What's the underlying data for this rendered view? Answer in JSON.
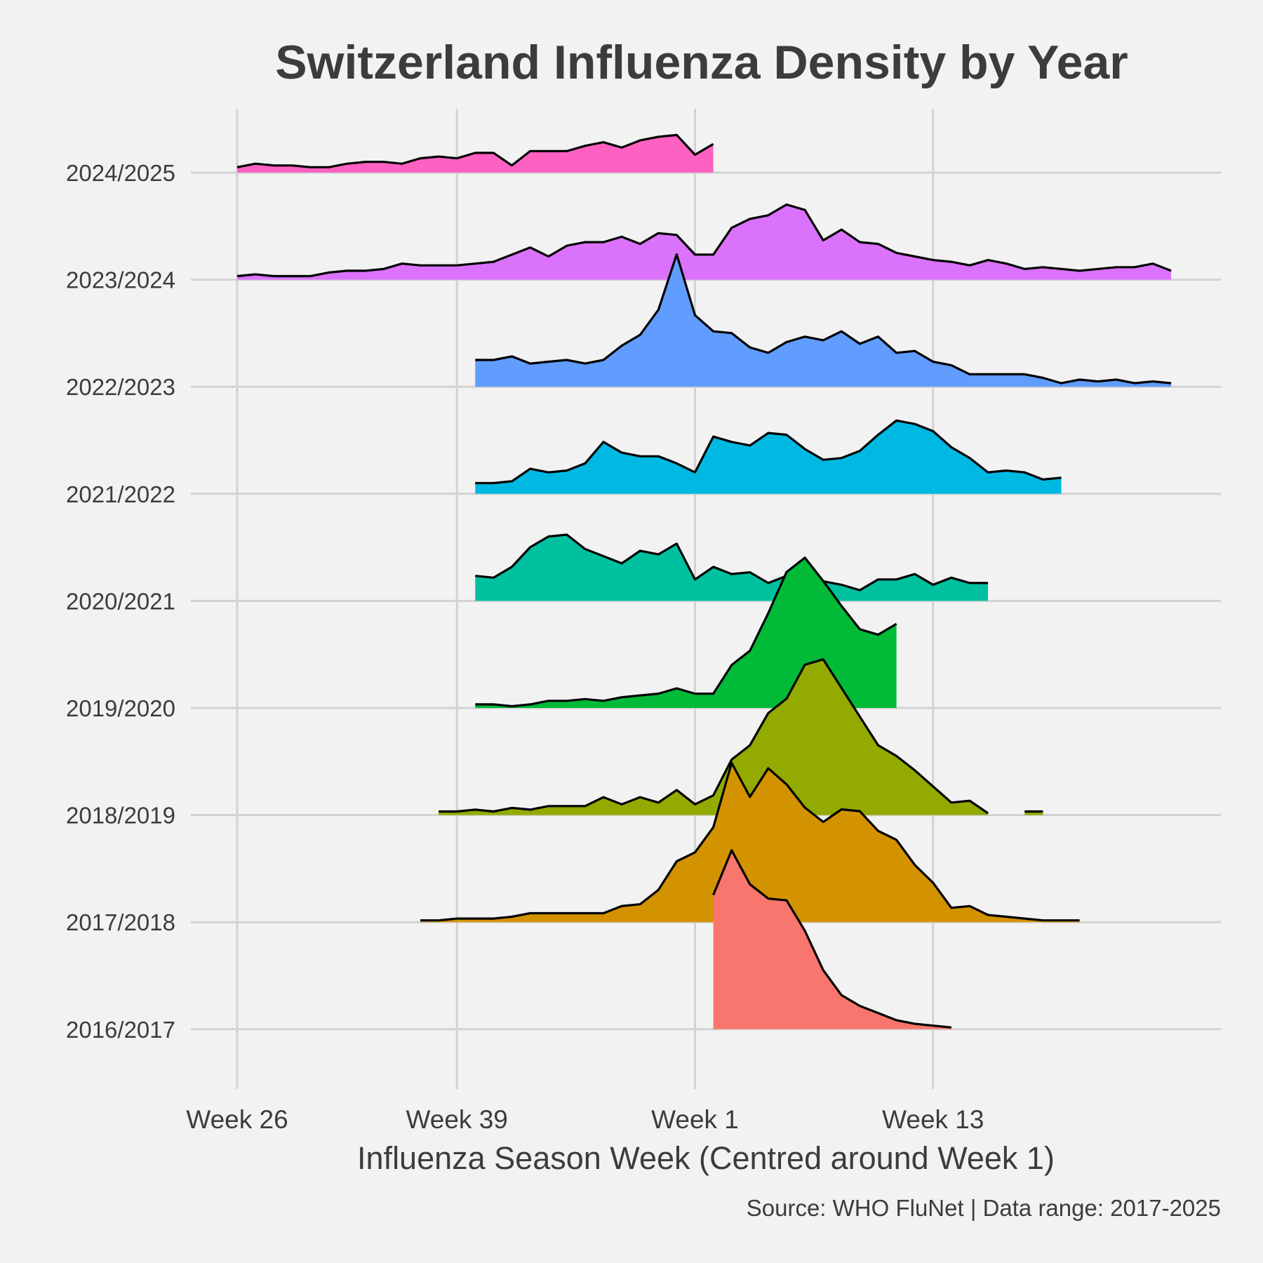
{
  "chart_data": {
    "type": "area",
    "title": "Switzerland Influenza Density by Year",
    "xlabel": "Influenza Season Week (Centred around Week 1)",
    "ylabel": "",
    "caption": "Source: WHO FluNet | Data range: 2017-2025",
    "x_ticks": [
      {
        "label": "Week 26",
        "value": 0
      },
      {
        "label": "Week 39",
        "value": 12
      },
      {
        "label": "Week 1",
        "value": 25
      },
      {
        "label": "Week 13",
        "value": 38
      }
    ],
    "x_axis_note": "x values are season week index: 0 = Week 26, 25 = Week 1",
    "xlim": [
      -2.5,
      53.5
    ],
    "grid": true,
    "legend": "none",
    "series": [
      {
        "name": "2016/2017",
        "color": "#F8766D",
        "x_start": 26,
        "values": [
          0.75,
          1.0,
          0.81,
          0.73,
          0.72,
          0.55,
          0.33,
          0.19,
          0.13,
          0.09,
          0.05,
          0.03,
          0.02,
          0.01
        ]
      },
      {
        "name": "2017/2018",
        "color": "#D39200",
        "x_start": 10,
        "values": [
          0.01,
          0.01,
          0.02,
          0.02,
          0.02,
          0.03,
          0.05,
          0.05,
          0.05,
          0.05,
          0.05,
          0.09,
          0.1,
          0.18,
          0.34,
          0.39,
          0.53,
          0.89,
          0.7,
          0.86,
          0.77,
          0.64,
          0.56,
          0.63,
          0.62,
          0.51,
          0.46,
          0.32,
          0.22,
          0.08,
          0.09,
          0.04,
          0.03,
          0.02,
          0.01,
          0.01,
          0.01
        ]
      },
      {
        "name": "2018/2019",
        "color": "#93AA00",
        "x_start": 11,
        "values": [
          0.02,
          0.02,
          0.03,
          0.02,
          0.04,
          0.03,
          0.05,
          0.05,
          0.05,
          0.1,
          0.06,
          0.1,
          0.07,
          0.14,
          0.06,
          0.11,
          0.31,
          0.39,
          0.57,
          0.65,
          0.84,
          0.87,
          0.71,
          0.55,
          0.39,
          0.33,
          0.25,
          0.16,
          0.07,
          0.08,
          0.01
        ],
        "extra_segment": {
          "x_start": 43,
          "values": [
            0.02,
            0.02
          ]
        }
      },
      {
        "name": "2019/2020",
        "color": "#00BA38",
        "x_start": 13,
        "values": [
          0.02,
          0.02,
          0.01,
          0.02,
          0.04,
          0.04,
          0.05,
          0.04,
          0.06,
          0.07,
          0.08,
          0.11,
          0.08,
          0.08,
          0.24,
          0.32,
          0.53,
          0.76,
          0.84,
          0.71,
          0.57,
          0.44,
          0.41,
          0.47
        ]
      },
      {
        "name": "2020/2021",
        "color": "#00C19F",
        "x_start": 13,
        "values": [
          0.14,
          0.13,
          0.19,
          0.3,
          0.36,
          0.37,
          0.29,
          0.25,
          0.21,
          0.28,
          0.26,
          0.32,
          0.12,
          0.19,
          0.15,
          0.16,
          0.1,
          0.14,
          0.11,
          0.11,
          0.09,
          0.06,
          0.12,
          0.12,
          0.15,
          0.09,
          0.13,
          0.1,
          0.1
        ]
      },
      {
        "name": "2021/2022",
        "color": "#00B9E3",
        "x_start": 13,
        "values": [
          0.06,
          0.06,
          0.07,
          0.14,
          0.12,
          0.13,
          0.17,
          0.29,
          0.23,
          0.21,
          0.21,
          0.17,
          0.12,
          0.32,
          0.29,
          0.27,
          0.34,
          0.33,
          0.25,
          0.19,
          0.2,
          0.24,
          0.33,
          0.41,
          0.39,
          0.35,
          0.26,
          0.2,
          0.12,
          0.13,
          0.12,
          0.08,
          0.09
        ]
      },
      {
        "name": "2022/2023",
        "color": "#619CFF",
        "x_start": 13,
        "values": [
          0.15,
          0.15,
          0.17,
          0.13,
          0.14,
          0.15,
          0.13,
          0.15,
          0.23,
          0.29,
          0.43,
          0.74,
          0.4,
          0.31,
          0.3,
          0.22,
          0.19,
          0.25,
          0.28,
          0.26,
          0.31,
          0.24,
          0.28,
          0.19,
          0.2,
          0.14,
          0.12,
          0.07,
          0.07,
          0.07,
          0.07,
          0.05,
          0.02,
          0.04,
          0.03,
          0.04,
          0.02,
          0.03,
          0.02
        ]
      },
      {
        "name": "2023/2024",
        "color": "#DB72FB",
        "x_start": 0,
        "values": [
          0.02,
          0.03,
          0.02,
          0.02,
          0.02,
          0.04,
          0.05,
          0.05,
          0.06,
          0.09,
          0.08,
          0.08,
          0.08,
          0.09,
          0.1,
          0.14,
          0.18,
          0.13,
          0.19,
          0.21,
          0.21,
          0.24,
          0.2,
          0.26,
          0.25,
          0.14,
          0.14,
          0.29,
          0.34,
          0.36,
          0.42,
          0.39,
          0.22,
          0.28,
          0.21,
          0.2,
          0.15,
          0.13,
          0.11,
          0.1,
          0.08,
          0.11,
          0.09,
          0.06,
          0.07,
          0.06,
          0.05,
          0.06,
          0.07,
          0.07,
          0.09,
          0.05
        ]
      },
      {
        "name": "2024/2025",
        "color": "#FF61C3",
        "x_start": 0,
        "values": [
          0.03,
          0.05,
          0.04,
          0.04,
          0.03,
          0.03,
          0.05,
          0.06,
          0.06,
          0.05,
          0.08,
          0.09,
          0.08,
          0.11,
          0.11,
          0.04,
          0.12,
          0.12,
          0.12,
          0.15,
          0.17,
          0.14,
          0.18,
          0.2,
          0.21,
          0.1,
          0.16
        ]
      }
    ]
  }
}
